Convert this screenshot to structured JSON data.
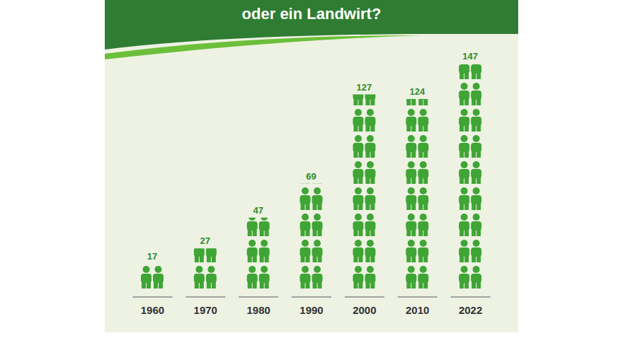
{
  "chart_data": {
    "type": "bar",
    "title": "oder ein Landwirt?",
    "categories": [
      "1960",
      "1970",
      "1980",
      "1990",
      "2000",
      "2010",
      "2022"
    ],
    "values": [
      17,
      27,
      47,
      69,
      127,
      124,
      147
    ],
    "color": "#3fa535",
    "data_labels": true,
    "tick_labels": "x"
  }
}
